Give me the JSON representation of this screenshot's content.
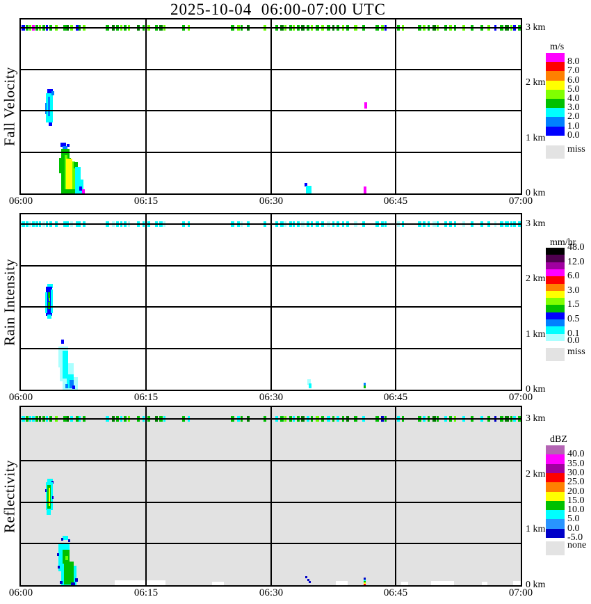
{
  "chart_data": {
    "type": "heatmap",
    "title": "2025-10-04  06:00-07:00 UTC",
    "x": {
      "ticks": [
        "06:00",
        "06:15",
        "06:30",
        "06:45",
        "07:00"
      ],
      "range_minutes": [
        0,
        60
      ],
      "grid": true
    },
    "y": {
      "ticks": [
        "3 km",
        "2 km",
        "1 km",
        "0 km"
      ],
      "range_km": [
        0,
        3.15
      ],
      "grid": true
    },
    "palette": {
      "g": "#00c000",
      "l": "#66ff00",
      "d": "#008000",
      "b": "#0000ff",
      "c": "#00ffff",
      "m": "#ff00ff",
      "p": "#aaffff",
      "k": "#0000c8",
      "o": "#0080ff",
      "y": "#ffff00",
      "r": "#ff0000",
      "w": "#ffffff"
    },
    "band_note": "dash entries: [x, w, colorKeys(panel1,panel2,panel3), optional dy, optional h] — echo band at 3 km",
    "band": [
      [
        1,
        5,
        "bcc"
      ],
      [
        7,
        4,
        "gcg"
      ],
      [
        12,
        3,
        "lpc"
      ],
      [
        16,
        4,
        "mcc"
      ],
      [
        21,
        4,
        "gcg"
      ],
      [
        26,
        3,
        "lcd"
      ],
      [
        31,
        4,
        "gpg"
      ],
      [
        36,
        3,
        "bcc"
      ],
      [
        41,
        4,
        "gcg"
      ],
      [
        49,
        4,
        "lcl"
      ],
      [
        61,
        5,
        "gcg"
      ],
      [
        66,
        3,
        "dcd"
      ],
      [
        71,
        4,
        "lpc"
      ],
      [
        79,
        4,
        "bcg"
      ],
      [
        83,
        3,
        "gcc"
      ],
      [
        89,
        4,
        "lcg"
      ],
      [
        122,
        5,
        "gcc"
      ],
      [
        131,
        4,
        "dpd"
      ],
      [
        137,
        4,
        "gcg"
      ],
      [
        143,
        3,
        "lcc"
      ],
      [
        148,
        4,
        "gcg"
      ],
      [
        154,
        3,
        "lpl"
      ],
      [
        167,
        4,
        "dcg"
      ],
      [
        175,
        3,
        "gcc"
      ],
      [
        182,
        4,
        "lcg"
      ],
      [
        193,
        4,
        "gcd"
      ],
      [
        199,
        5,
        "dcg"
      ],
      [
        205,
        3,
        "lpc"
      ],
      [
        232,
        4,
        "gcg"
      ],
      [
        240,
        3,
        "lcc"
      ],
      [
        302,
        5,
        "gcg"
      ],
      [
        311,
        4,
        "lcc"
      ],
      [
        316,
        3,
        "gpg"
      ],
      [
        325,
        4,
        "dcd"
      ],
      [
        349,
        4,
        "lcg"
      ],
      [
        366,
        4,
        "gcc"
      ],
      [
        373,
        5,
        "dcg"
      ],
      [
        379,
        3,
        "lpl"
      ],
      [
        386,
        4,
        "gcg"
      ],
      [
        391,
        3,
        "lcc"
      ],
      [
        397,
        4,
        "gcg"
      ],
      [
        403,
        5,
        "dpd"
      ],
      [
        411,
        4,
        "gcc"
      ],
      [
        417,
        3,
        "lcg"
      ],
      [
        424,
        5,
        "gcl"
      ],
      [
        432,
        4,
        "lcg"
      ],
      [
        440,
        5,
        "gpc"
      ],
      [
        448,
        3,
        "dcg"
      ],
      [
        454,
        4,
        "gcc"
      ],
      [
        462,
        3,
        "lcg"
      ],
      [
        468,
        4,
        "gcd"
      ],
      [
        479,
        5,
        "lpg"
      ],
      [
        491,
        4,
        "gcc"
      ],
      [
        510,
        5,
        "gcg"
      ],
      [
        518,
        4,
        "lck"
      ],
      [
        523,
        3,
        "bcg"
      ],
      [
        541,
        4,
        "gpc"
      ],
      [
        548,
        3,
        "lcg"
      ],
      [
        571,
        5,
        "gcg"
      ],
      [
        578,
        4,
        "lcc"
      ],
      [
        585,
        3,
        "gcg"
      ],
      [
        592,
        5,
        "dpd"
      ],
      [
        598,
        3,
        "lcg"
      ],
      [
        609,
        4,
        "gcc"
      ],
      [
        616,
        4,
        "lcg"
      ],
      [
        623,
        3,
        "gcl"
      ],
      [
        635,
        4,
        "lpc"
      ],
      [
        647,
        4,
        "gcg"
      ],
      [
        661,
        4,
        "gcc"
      ],
      [
        671,
        4,
        "lcg"
      ],
      [
        681,
        3,
        "bpk"
      ],
      [
        689,
        5,
        "gcg"
      ],
      [
        696,
        6,
        "dcd"
      ],
      [
        704,
        3,
        "lcg"
      ],
      [
        708,
        4,
        "bcc"
      ],
      [
        715,
        4,
        "gcg"
      ]
    ],
    "panels": [
      {
        "name": "Fall Velocity",
        "units": "m/s",
        "background": "#ffffff",
        "colorbar": {
          "title": "m/s",
          "colors": [
            "#ff00ff",
            "#ff0000",
            "#ff8000",
            "#ffff00",
            "#80ff00",
            "#00c000",
            "#00ffff",
            "#0080ff",
            "#0000ff"
          ],
          "labels": [
            "8.0",
            "7.0",
            "6.0",
            "5.0",
            "4.0",
            "3.0",
            "2.0",
            "1.0",
            "0.0"
          ],
          "label_boundaries": [
            1,
            2,
            3,
            4,
            5,
            6,
            7,
            8,
            9
          ],
          "missing_label": "miss",
          "missing_color": "#e3e3e3"
        },
        "echo_rects": [
          [
            38,
            100,
            8,
            8,
            "b"
          ],
          [
            36,
            106,
            10,
            42,
            "c"
          ],
          [
            39,
            111,
            3,
            28,
            "o"
          ],
          [
            44,
            103,
            4,
            6,
            "o"
          ],
          [
            35,
            120,
            2,
            16,
            "o"
          ],
          [
            40,
            148,
            5,
            5,
            "b"
          ],
          [
            57,
            177,
            8,
            6,
            "b"
          ],
          [
            66,
            179,
            4,
            4,
            "b"
          ],
          [
            60,
            182,
            7,
            4,
            "o"
          ],
          [
            58,
            186,
            12,
            16,
            "g"
          ],
          [
            55,
            199,
            17,
            22,
            "g"
          ],
          [
            58,
            218,
            20,
            32,
            "g"
          ],
          [
            63,
            195,
            4,
            49,
            "l"
          ],
          [
            74,
            204,
            4,
            40,
            "l"
          ],
          [
            65,
            200,
            9,
            44,
            "y"
          ],
          [
            76,
            205,
            6,
            9,
            "g"
          ],
          [
            78,
            212,
            8,
            38,
            "c"
          ],
          [
            84,
            230,
            6,
            20,
            "c"
          ],
          [
            84,
            240,
            4,
            6,
            "b"
          ],
          [
            88,
            244,
            4,
            6,
            "m"
          ],
          [
            408,
            235,
            4,
            5,
            "b"
          ],
          [
            410,
            239,
            8,
            11,
            "c"
          ],
          [
            494,
            119,
            4,
            9,
            "m"
          ],
          [
            493,
            240,
            4,
            10,
            "m"
          ]
        ]
      },
      {
        "name": "Rain Intensity",
        "units": "mm/hr",
        "background": "#ffffff",
        "colorbar": {
          "title": "mm/hr",
          "colors": [
            "#000000",
            "#500050",
            "#a000a0",
            "#ff00ff",
            "#ff0000",
            "#ff8000",
            "#ffff00",
            "#80ff00",
            "#00c000",
            "#0000ff",
            "#0080ff",
            "#00ffff",
            "#aaffff"
          ],
          "labels": [
            "48.0",
            "12.0",
            "6.0",
            "3.0",
            "1.5",
            "0.5",
            "0.1",
            "0.0"
          ],
          "label_boundaries": [
            0,
            2,
            4,
            6,
            8,
            10,
            12,
            13
          ],
          "missing_label": "miss",
          "missing_color": "#e3e3e3"
        },
        "echo_rects": [
          [
            38,
            100,
            8,
            6,
            "c"
          ],
          [
            36,
            104,
            9,
            42,
            "b"
          ],
          [
            35,
            112,
            3,
            30,
            "c"
          ],
          [
            43,
            108,
            3,
            34,
            "c"
          ],
          [
            39,
            112,
            3,
            8,
            "g"
          ],
          [
            39,
            126,
            3,
            10,
            "g"
          ],
          [
            40,
            120,
            2,
            5,
            "l"
          ],
          [
            38,
            144,
            6,
            6,
            "c"
          ],
          [
            58,
            180,
            4,
            6,
            "b"
          ],
          [
            54,
            190,
            14,
            30,
            "p"
          ],
          [
            56,
            214,
            20,
            26,
            "p"
          ],
          [
            60,
            234,
            22,
            18,
            "p"
          ],
          [
            60,
            196,
            8,
            40,
            "c"
          ],
          [
            66,
            230,
            10,
            20,
            "c"
          ],
          [
            70,
            238,
            6,
            12,
            "o"
          ],
          [
            64,
            244,
            4,
            6,
            "o"
          ],
          [
            74,
            246,
            4,
            5,
            "b"
          ],
          [
            412,
            237,
            5,
            8,
            "p"
          ],
          [
            414,
            243,
            4,
            7,
            "c"
          ],
          [
            493,
            242,
            3,
            4,
            "o"
          ],
          [
            493,
            246,
            3,
            4,
            "g"
          ]
        ]
      },
      {
        "name": "Reflectivity",
        "units": "dBZ",
        "background": "#e2e2e2",
        "colorbar": {
          "title": "dBZ",
          "colors": [
            "#b464b4",
            "#ff00ff",
            "#a000a0",
            "#ff0000",
            "#ff8000",
            "#ffff00",
            "#00c000",
            "#00ffff",
            "#2894ff",
            "#0000c8"
          ],
          "labels": [
            "40.0",
            "35.0",
            "30.0",
            "25.0",
            "20.0",
            "15.0",
            "10.0",
            "5.0",
            "0.0",
            "-5.0"
          ],
          "label_boundaries": [
            1,
            2,
            3,
            4,
            5,
            6,
            7,
            8,
            9,
            10
          ],
          "missing_label": "none",
          "missing_color": "#e3e3e3"
        },
        "echo_rects": [
          [
            38,
            103,
            8,
            6,
            "c"
          ],
          [
            44,
            106,
            3,
            4,
            "k"
          ],
          [
            36,
            108,
            10,
            40,
            "c"
          ],
          [
            38,
            112,
            5,
            34,
            "g"
          ],
          [
            40,
            116,
            2,
            26,
            "y"
          ],
          [
            35,
            118,
            2,
            4,
            "k"
          ],
          [
            45,
            128,
            2,
            4,
            "k"
          ],
          [
            37,
            147,
            6,
            8,
            "c"
          ],
          [
            60,
            185,
            8,
            6,
            "c"
          ],
          [
            58,
            188,
            3,
            4,
            "k"
          ],
          [
            68,
            190,
            3,
            4,
            "k"
          ],
          [
            54,
            196,
            16,
            40,
            "c"
          ],
          [
            58,
            228,
            22,
            28,
            "c"
          ],
          [
            60,
            205,
            10,
            20,
            "g"
          ],
          [
            62,
            222,
            14,
            33,
            "g"
          ],
          [
            52,
            210,
            3,
            4,
            "k"
          ],
          [
            53,
            228,
            3,
            4,
            "k"
          ],
          [
            56,
            250,
            4,
            4,
            "k"
          ],
          [
            78,
            246,
            4,
            5,
            "k"
          ],
          [
            72,
            252,
            6,
            4,
            "k"
          ],
          [
            64,
            214,
            4,
            6,
            "l"
          ],
          [
            409,
            243,
            3,
            3,
            "k"
          ],
          [
            412,
            247,
            3,
            3,
            "k"
          ],
          [
            414,
            250,
            3,
            3,
            "k"
          ],
          [
            493,
            245,
            3,
            3,
            "k"
          ],
          [
            493,
            248,
            3,
            2,
            "c"
          ],
          [
            493,
            250,
            3,
            2,
            "g"
          ],
          [
            493,
            252,
            3,
            2,
            "y"
          ],
          [
            493,
            254,
            3,
            2,
            "r"
          ],
          [
            135,
            249,
            73,
            7,
            "w"
          ],
          [
            275,
            251,
            17,
            5,
            "w"
          ],
          [
            453,
            250,
            17,
            6,
            "w"
          ],
          [
            547,
            251,
            10,
            5,
            "w"
          ],
          [
            590,
            250,
            33,
            6,
            "w"
          ],
          [
            663,
            251,
            8,
            5,
            "w"
          ],
          [
            708,
            250,
            11,
            6,
            "w"
          ]
        ]
      }
    ]
  }
}
